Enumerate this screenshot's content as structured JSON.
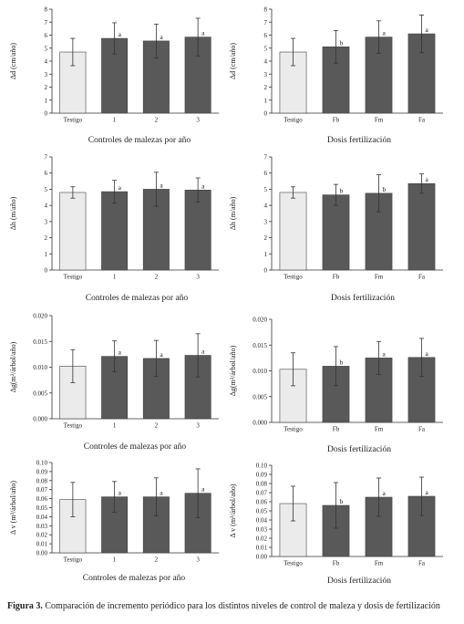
{
  "chart_data": [
    {
      "type": "bar",
      "categories": [
        "Testigo",
        "1",
        "2",
        "3"
      ],
      "values": [
        4.7,
        5.75,
        5.55,
        5.85
      ],
      "errors": [
        1.05,
        1.2,
        1.3,
        1.45
      ],
      "letters": [
        "",
        "a",
        "a",
        "a"
      ],
      "bar_colors": [
        "#ebebeb",
        "#595959",
        "#595959",
        "#595959"
      ],
      "ylim": [
        0,
        8
      ],
      "yticks": [
        "0",
        "1",
        "2",
        "3",
        "4",
        "5",
        "6",
        "7",
        "8"
      ],
      "ylabel": "Δd (cm/año)",
      "xlabel": "Controles de malezas por año"
    },
    {
      "type": "bar",
      "categories": [
        "Testigo",
        "Fb",
        "Fm",
        "Fa"
      ],
      "values": [
        4.7,
        5.1,
        5.85,
        6.1
      ],
      "errors": [
        1.05,
        1.25,
        1.25,
        1.45
      ],
      "letters": [
        "",
        "b",
        "a",
        "a"
      ],
      "bar_colors": [
        "#ebebeb",
        "#595959",
        "#595959",
        "#595959"
      ],
      "ylim": [
        0,
        8
      ],
      "yticks": [
        "0",
        "1",
        "2",
        "3",
        "4",
        "5",
        "6",
        "7",
        "8"
      ],
      "ylabel": "Δd (cm/año)",
      "xlabel": "Dosis fertilización"
    },
    {
      "type": "bar",
      "categories": [
        "Testigo",
        "1",
        "2",
        "3"
      ],
      "values": [
        4.8,
        4.85,
        5.0,
        4.95
      ],
      "errors": [
        0.35,
        0.7,
        1.05,
        0.75
      ],
      "letters": [
        "",
        "a",
        "a",
        "a"
      ],
      "bar_colors": [
        "#ebebeb",
        "#595959",
        "#595959",
        "#595959"
      ],
      "ylim": [
        0,
        7
      ],
      "yticks": [
        "0",
        "1",
        "2",
        "3",
        "4",
        "5",
        "6",
        "7"
      ],
      "ylabel": "Δh (m/año)",
      "xlabel": "Controles de malezas por año"
    },
    {
      "type": "bar",
      "categories": [
        "Testigo",
        "Fb",
        "Fm",
        "Fa"
      ],
      "values": [
        4.8,
        4.65,
        4.75,
        5.35
      ],
      "errors": [
        0.35,
        0.65,
        1.15,
        0.6
      ],
      "letters": [
        "",
        "b",
        "b",
        "a"
      ],
      "bar_colors": [
        "#ebebeb",
        "#595959",
        "#595959",
        "#595959"
      ],
      "ylim": [
        0,
        7
      ],
      "yticks": [
        "0",
        "1",
        "2",
        "3",
        "4",
        "5",
        "6",
        "7"
      ],
      "ylabel": "Δh (m/año)",
      "xlabel": "Dosis fertilización"
    },
    {
      "type": "bar",
      "categories": [
        "Testigo",
        "1",
        "2",
        "3"
      ],
      "values": [
        0.0102,
        0.0121,
        0.0117,
        0.0123
      ],
      "errors": [
        0.0032,
        0.003,
        0.0035,
        0.0042
      ],
      "letters": [
        "",
        "a",
        "a",
        "a"
      ],
      "bar_colors": [
        "#ebebeb",
        "#595959",
        "#595959",
        "#595959"
      ],
      "ylim": [
        0,
        0.02
      ],
      "yticks": [
        "0.000",
        "0.005",
        "0.010",
        "0.015",
        "0.020"
      ],
      "ylabel": "Δg(m²/árbol/año)",
      "xlabel": "Controles de malezas por año"
    },
    {
      "type": "bar",
      "categories": [
        "Testigo",
        "Fb",
        "Fm",
        "Fa"
      ],
      "values": [
        0.0103,
        0.0109,
        0.0125,
        0.0126
      ],
      "errors": [
        0.0032,
        0.0038,
        0.0032,
        0.0037
      ],
      "letters": [
        "",
        "b",
        "a",
        "a"
      ],
      "bar_colors": [
        "#ebebeb",
        "#595959",
        "#595959",
        "#595959"
      ],
      "ylim": [
        0,
        0.02
      ],
      "yticks": [
        "0.000",
        "0.005",
        "0.010",
        "0.015",
        "0.020"
      ],
      "ylabel": "Δg(m²/árbol/año)",
      "xlabel": "Dosis fertilización"
    },
    {
      "type": "bar",
      "categories": [
        "Testigo",
        "1",
        "2",
        "3"
      ],
      "values": [
        0.059,
        0.062,
        0.062,
        0.066
      ],
      "errors": [
        0.019,
        0.017,
        0.021,
        0.027
      ],
      "letters": [
        "",
        "a",
        "a",
        "a"
      ],
      "bar_colors": [
        "#ebebeb",
        "#595959",
        "#595959",
        "#595959"
      ],
      "ylim": [
        0,
        0.1
      ],
      "yticks": [
        "0.00",
        "0.01",
        "0.02",
        "0.03",
        "0.04",
        "0.05",
        "0.06",
        "0.07",
        "0.08",
        "0.09",
        "0.10"
      ],
      "ylabel": "Δ v (m³/árbol/año)",
      "xlabel": "Controles de malezas por año"
    },
    {
      "type": "bar",
      "categories": [
        "Testigo",
        "Fb",
        "Fm",
        "Fa"
      ],
      "values": [
        0.058,
        0.056,
        0.065,
        0.066
      ],
      "errors": [
        0.019,
        0.025,
        0.021,
        0.021
      ],
      "letters": [
        "",
        "b",
        "a",
        "a"
      ],
      "bar_colors": [
        "#ebebeb",
        "#595959",
        "#595959",
        "#595959"
      ],
      "ylim": [
        0,
        0.1
      ],
      "yticks": [
        "0.00",
        "0.01",
        "0.02",
        "0.03",
        "0.04",
        "0.05",
        "0.06",
        "0.07",
        "0.08",
        "0.09",
        "0.10"
      ],
      "ylabel": "Δ v (m³/árbol/año)",
      "xlabel": "Dosis fertilización"
    }
  ],
  "caption": {
    "label": "Figura 3.",
    "text": "Comparación de incremento periódico para los distintos niveles de control de maleza y dosis de fertilización"
  }
}
